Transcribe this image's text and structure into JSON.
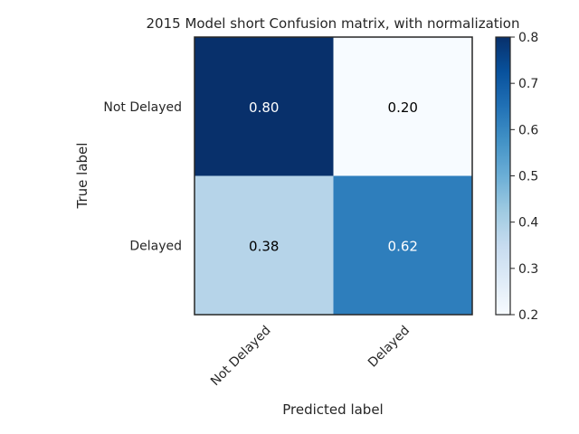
{
  "chart_data": {
    "type": "heatmap",
    "title": "2015 Model short Confusion matrix, with normalization",
    "xlabel": "Predicted label",
    "ylabel": "True label",
    "x_categories": [
      "Not Delayed",
      "Delayed"
    ],
    "y_categories": [
      "Not Delayed",
      "Delayed"
    ],
    "values": [
      [
        0.8,
        0.2
      ],
      [
        0.38,
        0.62
      ]
    ],
    "value_labels": [
      [
        "0.80",
        "0.20"
      ],
      [
        "0.38",
        "0.62"
      ]
    ],
    "colormap": "Blues",
    "colorbar": {
      "range": [
        0.2,
        0.8
      ],
      "ticks": [
        0.2,
        0.3,
        0.4,
        0.5,
        0.6,
        0.7,
        0.8
      ],
      "tick_labels": [
        "0.2",
        "0.3",
        "0.4",
        "0.5",
        "0.6",
        "0.7",
        "0.8"
      ]
    },
    "colors": {
      "dark_cell": "#08306b",
      "light_cell": "#f7fbff",
      "mid_cell": "#b2d3e8",
      "strong_cell": "#2e7ebc"
    },
    "grid": false
  }
}
